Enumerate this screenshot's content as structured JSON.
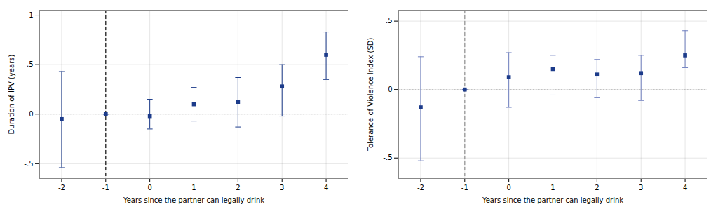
{
  "chart_data": [
    {
      "type": "scatter",
      "x": [
        -2,
        -1,
        0,
        1,
        2,
        3,
        4
      ],
      "values": [
        -0.05,
        0.0,
        -0.02,
        0.1,
        0.12,
        0.28,
        0.6
      ],
      "ci_lower": [
        -0.54,
        0.0,
        -0.15,
        -0.07,
        -0.13,
        -0.02,
        0.35
      ],
      "ci_upper": [
        0.43,
        0.0,
        0.15,
        0.27,
        0.37,
        0.5,
        0.83
      ],
      "xlabel": "Years since the partner can legally drink",
      "ylabel": "Duration of IPV (years)",
      "xlim": [
        -2.5,
        4.5
      ],
      "xticks": [
        -2,
        -1,
        0,
        1,
        2,
        3,
        4
      ],
      "ylim": [
        -0.65,
        1.05
      ],
      "yticks": [
        {
          "value": -0.5,
          "label": "-.5"
        },
        0,
        {
          "value": 0.5,
          "label": ".5"
        },
        1
      ],
      "grid": true,
      "marker": "square",
      "color": "#1C3B8A",
      "ci_color": "#1C3B8A",
      "hline": 0,
      "hline_color": "#BBBBBB",
      "vline": -1,
      "vline_color": "#222222"
    },
    {
      "type": "scatter",
      "x": [
        -2,
        -1,
        0,
        1,
        2,
        3,
        4
      ],
      "values": [
        -0.13,
        0.0,
        0.09,
        0.15,
        0.11,
        0.12,
        0.25
      ],
      "ci_lower": [
        -0.52,
        0.0,
        -0.13,
        -0.04,
        -0.06,
        -0.08,
        0.16
      ],
      "ci_upper": [
        0.24,
        0.0,
        0.27,
        0.25,
        0.22,
        0.25,
        0.43
      ],
      "xlabel": "Years since the partner can legally drink",
      "ylabel": "Tolerance of Violence Index (SD)",
      "xlim": [
        -2.5,
        4.5
      ],
      "xticks": [
        -2,
        -1,
        0,
        1,
        2,
        3,
        4
      ],
      "ylim": [
        -0.65,
        0.58
      ],
      "yticks": [
        {
          "value": -0.5,
          "label": "-.5"
        },
        0,
        {
          "value": 0.5,
          "label": ".5"
        }
      ],
      "grid": true,
      "marker": "square",
      "color": "#1C3B8A",
      "ci_color": "#7080C0",
      "hline": 0,
      "hline_color": "#BBBBBB",
      "vline": -1,
      "vline_color": "#999999"
    }
  ]
}
